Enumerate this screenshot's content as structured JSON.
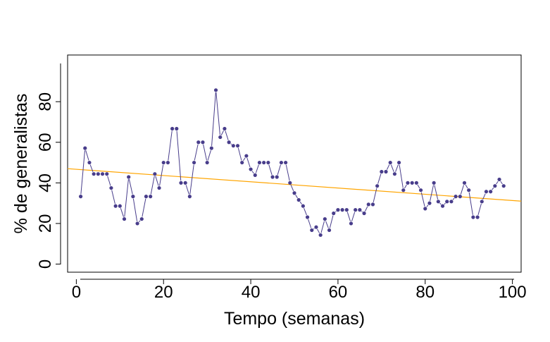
{
  "chart_data": {
    "type": "line",
    "title": "",
    "xlabel": "Tempo (semanas)",
    "ylabel": "% de generalistas",
    "xlim": [
      -2,
      102
    ],
    "ylim": [
      -4,
      103
    ],
    "xticks": [
      0,
      20,
      40,
      60,
      80,
      100
    ],
    "yticks": [
      0,
      20,
      40,
      60,
      80
    ],
    "grid": false,
    "series": [
      {
        "kind": "line+points",
        "color": "#483D8B",
        "x": [
          1,
          2,
          3,
          4,
          5,
          6,
          7,
          8,
          9,
          10,
          11,
          12,
          13,
          14,
          15,
          16,
          17,
          18,
          19,
          20,
          21,
          22,
          23,
          24,
          25,
          26,
          27,
          28,
          29,
          30,
          31,
          32,
          33,
          34,
          35,
          36,
          37,
          38,
          39,
          40,
          41,
          42,
          43,
          44,
          45,
          46,
          47,
          48,
          49,
          50,
          51,
          52,
          53,
          54,
          55,
          56,
          57,
          58,
          59,
          60,
          61,
          62,
          63,
          64,
          65,
          66,
          67,
          68,
          69,
          70,
          71,
          72,
          73,
          74,
          75,
          76,
          77,
          78,
          79,
          80,
          81,
          82,
          83,
          84,
          85,
          86,
          87,
          88,
          89,
          90,
          91,
          92,
          93,
          94,
          95,
          96,
          97,
          98
        ],
        "y": [
          33.3,
          57.1,
          50,
          44.4,
          44.4,
          44.4,
          44.4,
          37.5,
          28.6,
          28.6,
          22.2,
          42.9,
          33.3,
          20,
          22.2,
          33.3,
          33.3,
          44.4,
          37.5,
          50,
          50,
          66.7,
          66.7,
          40,
          40,
          33.3,
          50,
          60,
          60,
          50,
          57.1,
          85.7,
          62.5,
          66.7,
          60,
          58.3,
          58.3,
          50,
          53.3,
          46.7,
          43.8,
          50,
          50,
          50,
          42.9,
          42.9,
          50,
          50,
          40,
          35,
          31.6,
          28.6,
          23.1,
          16.7,
          18.2,
          14.3,
          22.2,
          16.7,
          25,
          26.7,
          26.7,
          26.7,
          20,
          26.7,
          26.7,
          25,
          29.4,
          29.4,
          38.5,
          45.5,
          45.5,
          50,
          44.4,
          50,
          36.4,
          40,
          40,
          40,
          36.4,
          27.3,
          30,
          40,
          30.8,
          28.6,
          30.8,
          30.8,
          33.3,
          33.3,
          40,
          36.4,
          23.1,
          23.1,
          30.8,
          35.7,
          35.7,
          38.5,
          41.7,
          38.5
        ]
      },
      {
        "kind": "trend-line",
        "color": "#FFA500",
        "x": [
          -2,
          102
        ],
        "y": [
          47.0,
          31.0
        ]
      }
    ]
  }
}
